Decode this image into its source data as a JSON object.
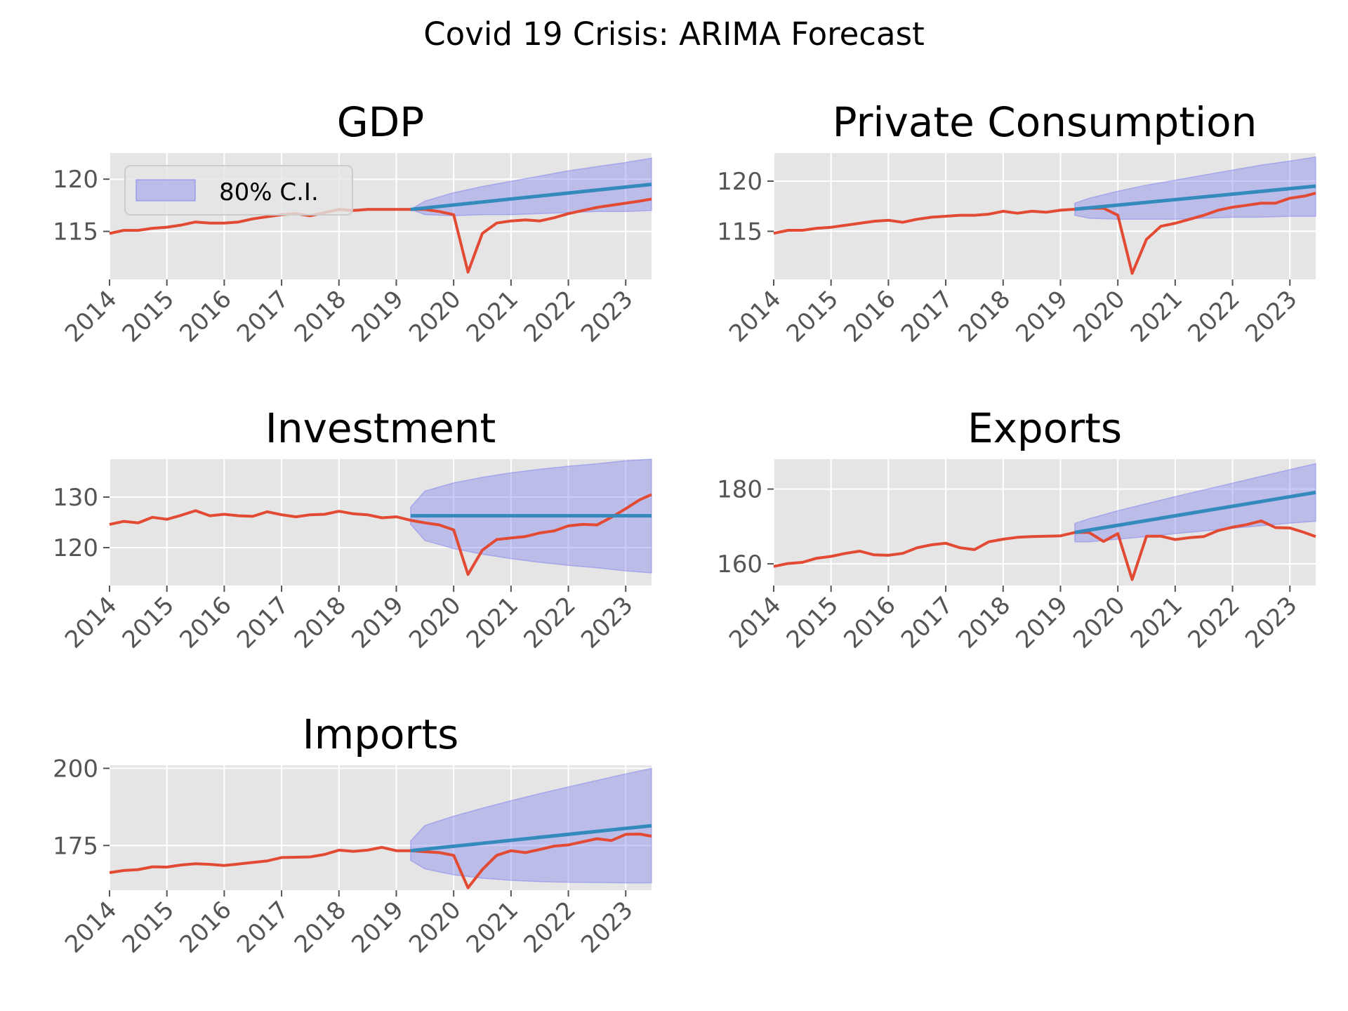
{
  "title": "Covid 19 Crisis: ARIMA Forecast",
  "legend": {
    "label": "80% C.I."
  },
  "colors": {
    "actual": "#e24a33",
    "forecast": "#348abd",
    "ci_fill": "#8080ee",
    "axes_bg": "#e5e5e5",
    "grid": "#ffffff",
    "tick_text": "#555555"
  },
  "chart_data": [
    {
      "type": "line",
      "title": "GDP",
      "xlim": [
        2014.0,
        2023.45
      ],
      "ylim": [
        110.4,
        122.5
      ],
      "x_ticks": [
        2014,
        2015,
        2016,
        2017,
        2018,
        2019,
        2020,
        2021,
        2022,
        2023
      ],
      "y_ticks": [
        115,
        120
      ],
      "grid": true,
      "legend_position": "upper-left",
      "series": [
        {
          "name": "actual",
          "x": [
            2014.0,
            2014.25,
            2014.5,
            2014.75,
            2015.0,
            2015.25,
            2015.5,
            2015.75,
            2016.0,
            2016.25,
            2016.5,
            2016.75,
            2017.0,
            2017.25,
            2017.5,
            2017.75,
            2018.0,
            2018.25,
            2018.5,
            2018.75,
            2019.0,
            2019.25,
            2019.5,
            2019.75,
            2020.0,
            2020.25,
            2020.5,
            2020.75,
            2021.0,
            2021.25,
            2021.5,
            2021.75,
            2022.0,
            2022.25,
            2022.5,
            2022.75,
            2023.0,
            2023.25,
            2023.45
          ],
          "values": [
            114.8,
            115.1,
            115.1,
            115.3,
            115.4,
            115.6,
            115.9,
            115.8,
            115.8,
            115.9,
            116.2,
            116.4,
            116.6,
            116.7,
            116.5,
            116.8,
            117.1,
            117.0,
            117.1,
            117.1,
            117.1,
            117.1,
            117.1,
            116.9,
            116.6,
            111.1,
            114.8,
            115.8,
            116.0,
            116.1,
            116.0,
            116.3,
            116.7,
            117.0,
            117.3,
            117.5,
            117.7,
            117.9,
            118.1
          ]
        }
      ],
      "forecast": {
        "x": [
          2019.25,
          2023.45
        ],
        "values": [
          117.1,
          119.5
        ]
      },
      "ci": {
        "x": [
          2019.25,
          2019.5,
          2020.0,
          2020.5,
          2021.0,
          2021.5,
          2022.0,
          2022.5,
          2023.0,
          2023.45
        ],
        "lower": [
          117.1,
          116.6,
          116.5,
          116.6,
          116.6,
          116.7,
          116.8,
          116.9,
          116.9,
          117.0
        ],
        "upper": [
          117.1,
          117.9,
          118.7,
          119.3,
          119.8,
          120.3,
          120.8,
          121.2,
          121.6,
          122.0
        ]
      }
    },
    {
      "type": "line",
      "title": "Private Consumption",
      "xlim": [
        2014.0,
        2023.45
      ],
      "ylim": [
        110.2,
        122.8
      ],
      "x_ticks": [
        2014,
        2015,
        2016,
        2017,
        2018,
        2019,
        2020,
        2021,
        2022,
        2023
      ],
      "y_ticks": [
        115,
        120
      ],
      "grid": true,
      "series": [
        {
          "name": "actual",
          "x": [
            2014.0,
            2014.25,
            2014.5,
            2014.75,
            2015.0,
            2015.25,
            2015.5,
            2015.75,
            2016.0,
            2016.25,
            2016.5,
            2016.75,
            2017.0,
            2017.25,
            2017.5,
            2017.75,
            2018.0,
            2018.25,
            2018.5,
            2018.75,
            2019.0,
            2019.25,
            2019.5,
            2019.75,
            2020.0,
            2020.25,
            2020.5,
            2020.75,
            2021.0,
            2021.25,
            2021.5,
            2021.75,
            2022.0,
            2022.25,
            2022.5,
            2022.75,
            2023.0,
            2023.25,
            2023.45
          ],
          "values": [
            114.8,
            115.1,
            115.1,
            115.3,
            115.4,
            115.6,
            115.8,
            116.0,
            116.1,
            115.9,
            116.2,
            116.4,
            116.5,
            116.6,
            116.6,
            116.7,
            117.0,
            116.8,
            117.0,
            116.9,
            117.1,
            117.2,
            117.3,
            117.3,
            116.6,
            110.8,
            114.2,
            115.5,
            115.8,
            116.2,
            116.6,
            117.1,
            117.4,
            117.6,
            117.8,
            117.8,
            118.3,
            118.5,
            118.8
          ]
        }
      ],
      "forecast": {
        "x": [
          2019.25,
          2023.45
        ],
        "values": [
          117.2,
          119.5
        ]
      },
      "ci": {
        "x": [
          2019.25,
          2019.5,
          2020.0,
          2020.5,
          2021.0,
          2021.5,
          2022.0,
          2022.5,
          2023.0,
          2023.45
        ],
        "lower": [
          116.6,
          116.3,
          116.2,
          116.2,
          116.2,
          116.3,
          116.4,
          116.4,
          116.5,
          116.5
        ],
        "upper": [
          117.8,
          118.3,
          119.0,
          119.6,
          120.1,
          120.6,
          121.1,
          121.6,
          122.0,
          122.4
        ]
      }
    },
    {
      "type": "line",
      "title": "Investment",
      "xlim": [
        2014.0,
        2023.45
      ],
      "ylim": [
        112.5,
        137.5
      ],
      "x_ticks": [
        2014,
        2015,
        2016,
        2017,
        2018,
        2019,
        2020,
        2021,
        2022,
        2023
      ],
      "y_ticks": [
        120,
        130
      ],
      "grid": true,
      "series": [
        {
          "name": "actual",
          "x": [
            2014.0,
            2014.25,
            2014.5,
            2014.75,
            2015.0,
            2015.25,
            2015.5,
            2015.75,
            2016.0,
            2016.25,
            2016.5,
            2016.75,
            2017.0,
            2017.25,
            2017.5,
            2017.75,
            2018.0,
            2018.25,
            2018.5,
            2018.75,
            2019.0,
            2019.25,
            2019.5,
            2019.75,
            2020.0,
            2020.25,
            2020.5,
            2020.75,
            2021.0,
            2021.25,
            2021.5,
            2021.75,
            2022.0,
            2022.25,
            2022.5,
            2022.75,
            2023.0,
            2023.25,
            2023.45
          ],
          "values": [
            124.6,
            125.2,
            124.9,
            126.0,
            125.6,
            126.4,
            127.3,
            126.3,
            126.6,
            126.3,
            126.2,
            127.1,
            126.5,
            126.1,
            126.5,
            126.6,
            127.2,
            126.7,
            126.5,
            125.9,
            126.1,
            125.4,
            124.9,
            124.5,
            123.5,
            114.7,
            119.5,
            121.6,
            121.9,
            122.2,
            122.9,
            123.3,
            124.3,
            124.6,
            124.5,
            126.0,
            127.7,
            129.5,
            130.5
          ]
        }
      ],
      "forecast": {
        "x": [
          2019.25,
          2023.45
        ],
        "values": [
          126.3,
          126.3
        ]
      },
      "ci": {
        "x": [
          2019.25,
          2019.5,
          2020.0,
          2020.5,
          2021.0,
          2021.5,
          2022.0,
          2022.5,
          2023.0,
          2023.45
        ],
        "lower": [
          124.6,
          121.4,
          119.8,
          118.7,
          117.8,
          117.1,
          116.5,
          116.0,
          115.4,
          115.0
        ],
        "upper": [
          128.0,
          131.2,
          132.8,
          133.9,
          134.8,
          135.5,
          136.1,
          136.6,
          137.2,
          137.5
        ]
      }
    },
    {
      "type": "line",
      "title": "Exports",
      "xlim": [
        2014.0,
        2023.45
      ],
      "ylim": [
        154.2,
        188.0
      ],
      "x_ticks": [
        2014,
        2015,
        2016,
        2017,
        2018,
        2019,
        2020,
        2021,
        2022,
        2023
      ],
      "y_ticks": [
        160,
        180
      ],
      "grid": true,
      "series": [
        {
          "name": "actual",
          "x": [
            2014.0,
            2014.25,
            2014.5,
            2014.75,
            2015.0,
            2015.25,
            2015.5,
            2015.75,
            2016.0,
            2016.25,
            2016.5,
            2016.75,
            2017.0,
            2017.25,
            2017.5,
            2017.75,
            2018.0,
            2018.25,
            2018.5,
            2018.75,
            2019.0,
            2019.25,
            2019.5,
            2019.75,
            2020.0,
            2020.25,
            2020.5,
            2020.75,
            2021.0,
            2021.25,
            2021.5,
            2021.75,
            2022.0,
            2022.25,
            2022.5,
            2022.75,
            2023.0,
            2023.25,
            2023.45
          ],
          "values": [
            159.3,
            160.1,
            160.4,
            161.5,
            162.0,
            162.8,
            163.4,
            162.4,
            162.3,
            162.8,
            164.3,
            165.1,
            165.5,
            164.3,
            163.8,
            165.9,
            166.6,
            167.1,
            167.3,
            167.4,
            167.5,
            168.4,
            168.4,
            166.0,
            168.1,
            155.8,
            167.4,
            167.4,
            166.5,
            167.0,
            167.3,
            168.9,
            169.8,
            170.5,
            171.5,
            169.7,
            169.6,
            168.4,
            167.3
          ]
        }
      ],
      "forecast": {
        "x": [
          2019.25,
          2023.45
        ],
        "values": [
          168.4,
          179.1
        ]
      },
      "ci": {
        "x": [
          2019.25,
          2019.5,
          2020.0,
          2020.5,
          2021.0,
          2021.5,
          2022.0,
          2022.5,
          2023.0,
          2023.45
        ],
        "lower": [
          165.9,
          165.9,
          166.6,
          167.3,
          168.1,
          168.8,
          169.5,
          170.2,
          170.9,
          171.4
        ],
        "upper": [
          170.8,
          172.1,
          174.2,
          176.1,
          178.0,
          179.8,
          181.6,
          183.4,
          185.2,
          186.8
        ]
      }
    },
    {
      "type": "line",
      "title": "Imports",
      "xlim": [
        2014.0,
        2023.45
      ],
      "ylim": [
        160.5,
        201.0
      ],
      "x_ticks": [
        2014,
        2015,
        2016,
        2017,
        2018,
        2019,
        2020,
        2021,
        2022,
        2023
      ],
      "y_ticks": [
        175,
        200
      ],
      "grid": true,
      "series": [
        {
          "name": "actual",
          "x": [
            2014.0,
            2014.25,
            2014.5,
            2014.75,
            2015.0,
            2015.25,
            2015.5,
            2015.75,
            2016.0,
            2016.25,
            2016.5,
            2016.75,
            2017.0,
            2017.25,
            2017.5,
            2017.75,
            2018.0,
            2018.25,
            2018.5,
            2018.75,
            2019.0,
            2019.25,
            2019.5,
            2019.75,
            2020.0,
            2020.25,
            2020.5,
            2020.75,
            2021.0,
            2021.25,
            2021.5,
            2021.75,
            2022.0,
            2022.25,
            2022.5,
            2022.75,
            2023.0,
            2023.25,
            2023.45
          ],
          "values": [
            166.2,
            166.9,
            167.2,
            168.1,
            168.0,
            168.7,
            169.1,
            168.9,
            168.5,
            169.0,
            169.5,
            170.0,
            171.1,
            171.2,
            171.3,
            172.1,
            173.5,
            173.1,
            173.5,
            174.4,
            173.3,
            173.3,
            173.0,
            172.7,
            171.8,
            161.3,
            167.2,
            171.8,
            173.3,
            172.7,
            173.7,
            174.8,
            175.2,
            176.2,
            177.2,
            176.6,
            178.6,
            178.7,
            178.0
          ]
        }
      ],
      "forecast": {
        "x": [
          2019.25,
          2023.45
        ],
        "values": [
          173.3,
          181.4
        ]
      },
      "ci": {
        "x": [
          2019.25,
          2019.5,
          2020.0,
          2020.5,
          2021.0,
          2021.5,
          2022.0,
          2022.5,
          2023.0,
          2023.45
        ],
        "lower": [
          170.2,
          167.4,
          165.5,
          164.4,
          163.7,
          163.3,
          163.1,
          163.0,
          162.9,
          162.9
        ],
        "upper": [
          176.5,
          181.5,
          184.5,
          187.1,
          189.5,
          191.8,
          194.0,
          196.1,
          198.2,
          200.0
        ]
      }
    }
  ]
}
